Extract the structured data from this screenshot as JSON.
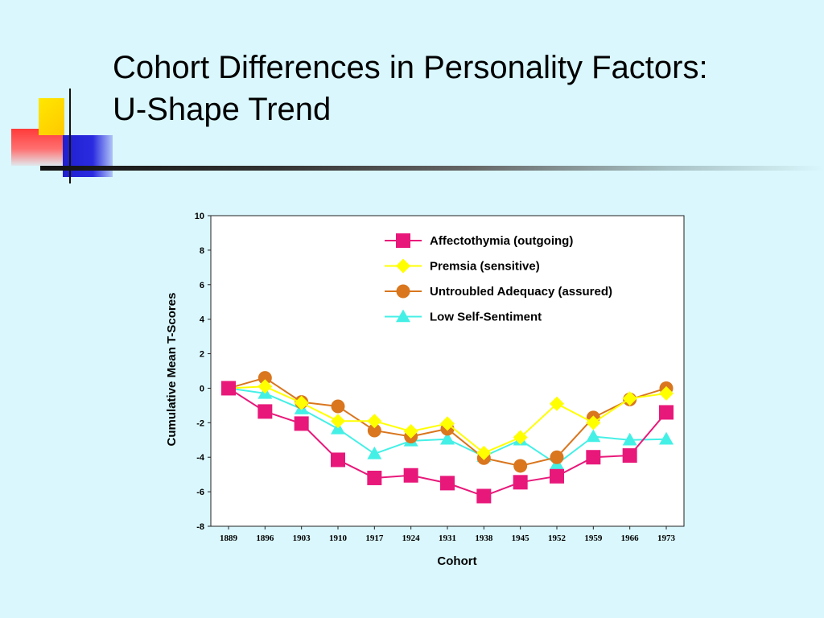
{
  "slide": {
    "title_line1": "Cohort Differences in Personality Factors:",
    "title_line2": "U-Shape Trend"
  },
  "decoration": {
    "colors": {
      "yellow": "#ffd800",
      "blue": "#2a2ae0",
      "red": "#ff4040",
      "background": "#d9f7fd"
    }
  },
  "chart_data": {
    "type": "line",
    "title": "",
    "xlabel": "Cohort",
    "ylabel": "Cumulative Mean T-Scores",
    "categories": [
      "1889",
      "1896",
      "1903",
      "1910",
      "1917",
      "1924",
      "1931",
      "1938",
      "1945",
      "1952",
      "1959",
      "1966",
      "1973"
    ],
    "ylim": [
      -8,
      10
    ],
    "yticks": [
      10,
      8,
      6,
      4,
      2,
      0,
      -2,
      -4,
      -6,
      -8
    ],
    "grid": false,
    "legend_position": "top-right",
    "series": [
      {
        "name": "Affectothymia (outgoing)",
        "color": "#e8187a",
        "marker": "square",
        "values": [
          0,
          -1.35,
          -2.05,
          -4.15,
          -5.2,
          -5.05,
          -5.5,
          -6.25,
          -5.45,
          -5.1,
          -4.0,
          -3.9,
          -1.4
        ]
      },
      {
        "name": "Premsia (sensitive)",
        "color": "#ffff00",
        "marker": "diamond",
        "values": [
          0,
          0.1,
          -0.85,
          -1.9,
          -1.9,
          -2.5,
          -2.05,
          -3.75,
          -2.85,
          -0.9,
          -2.0,
          -0.6,
          -0.3
        ]
      },
      {
        "name": "Untroubled Adequacy (assured)",
        "color": "#d9761e",
        "marker": "circle",
        "values": [
          0,
          0.6,
          -0.8,
          -1.05,
          -2.45,
          -2.8,
          -2.35,
          -4.05,
          -4.5,
          -4.0,
          -1.7,
          -0.65,
          0
        ]
      },
      {
        "name": "Low Self-Sentiment",
        "color": "#44f0e6",
        "marker": "triangle",
        "values": [
          0,
          -0.3,
          -1.2,
          -2.35,
          -3.8,
          -3.05,
          -2.95,
          -3.95,
          -3.0,
          -4.4,
          -2.8,
          -3.0,
          -2.95
        ]
      }
    ]
  }
}
